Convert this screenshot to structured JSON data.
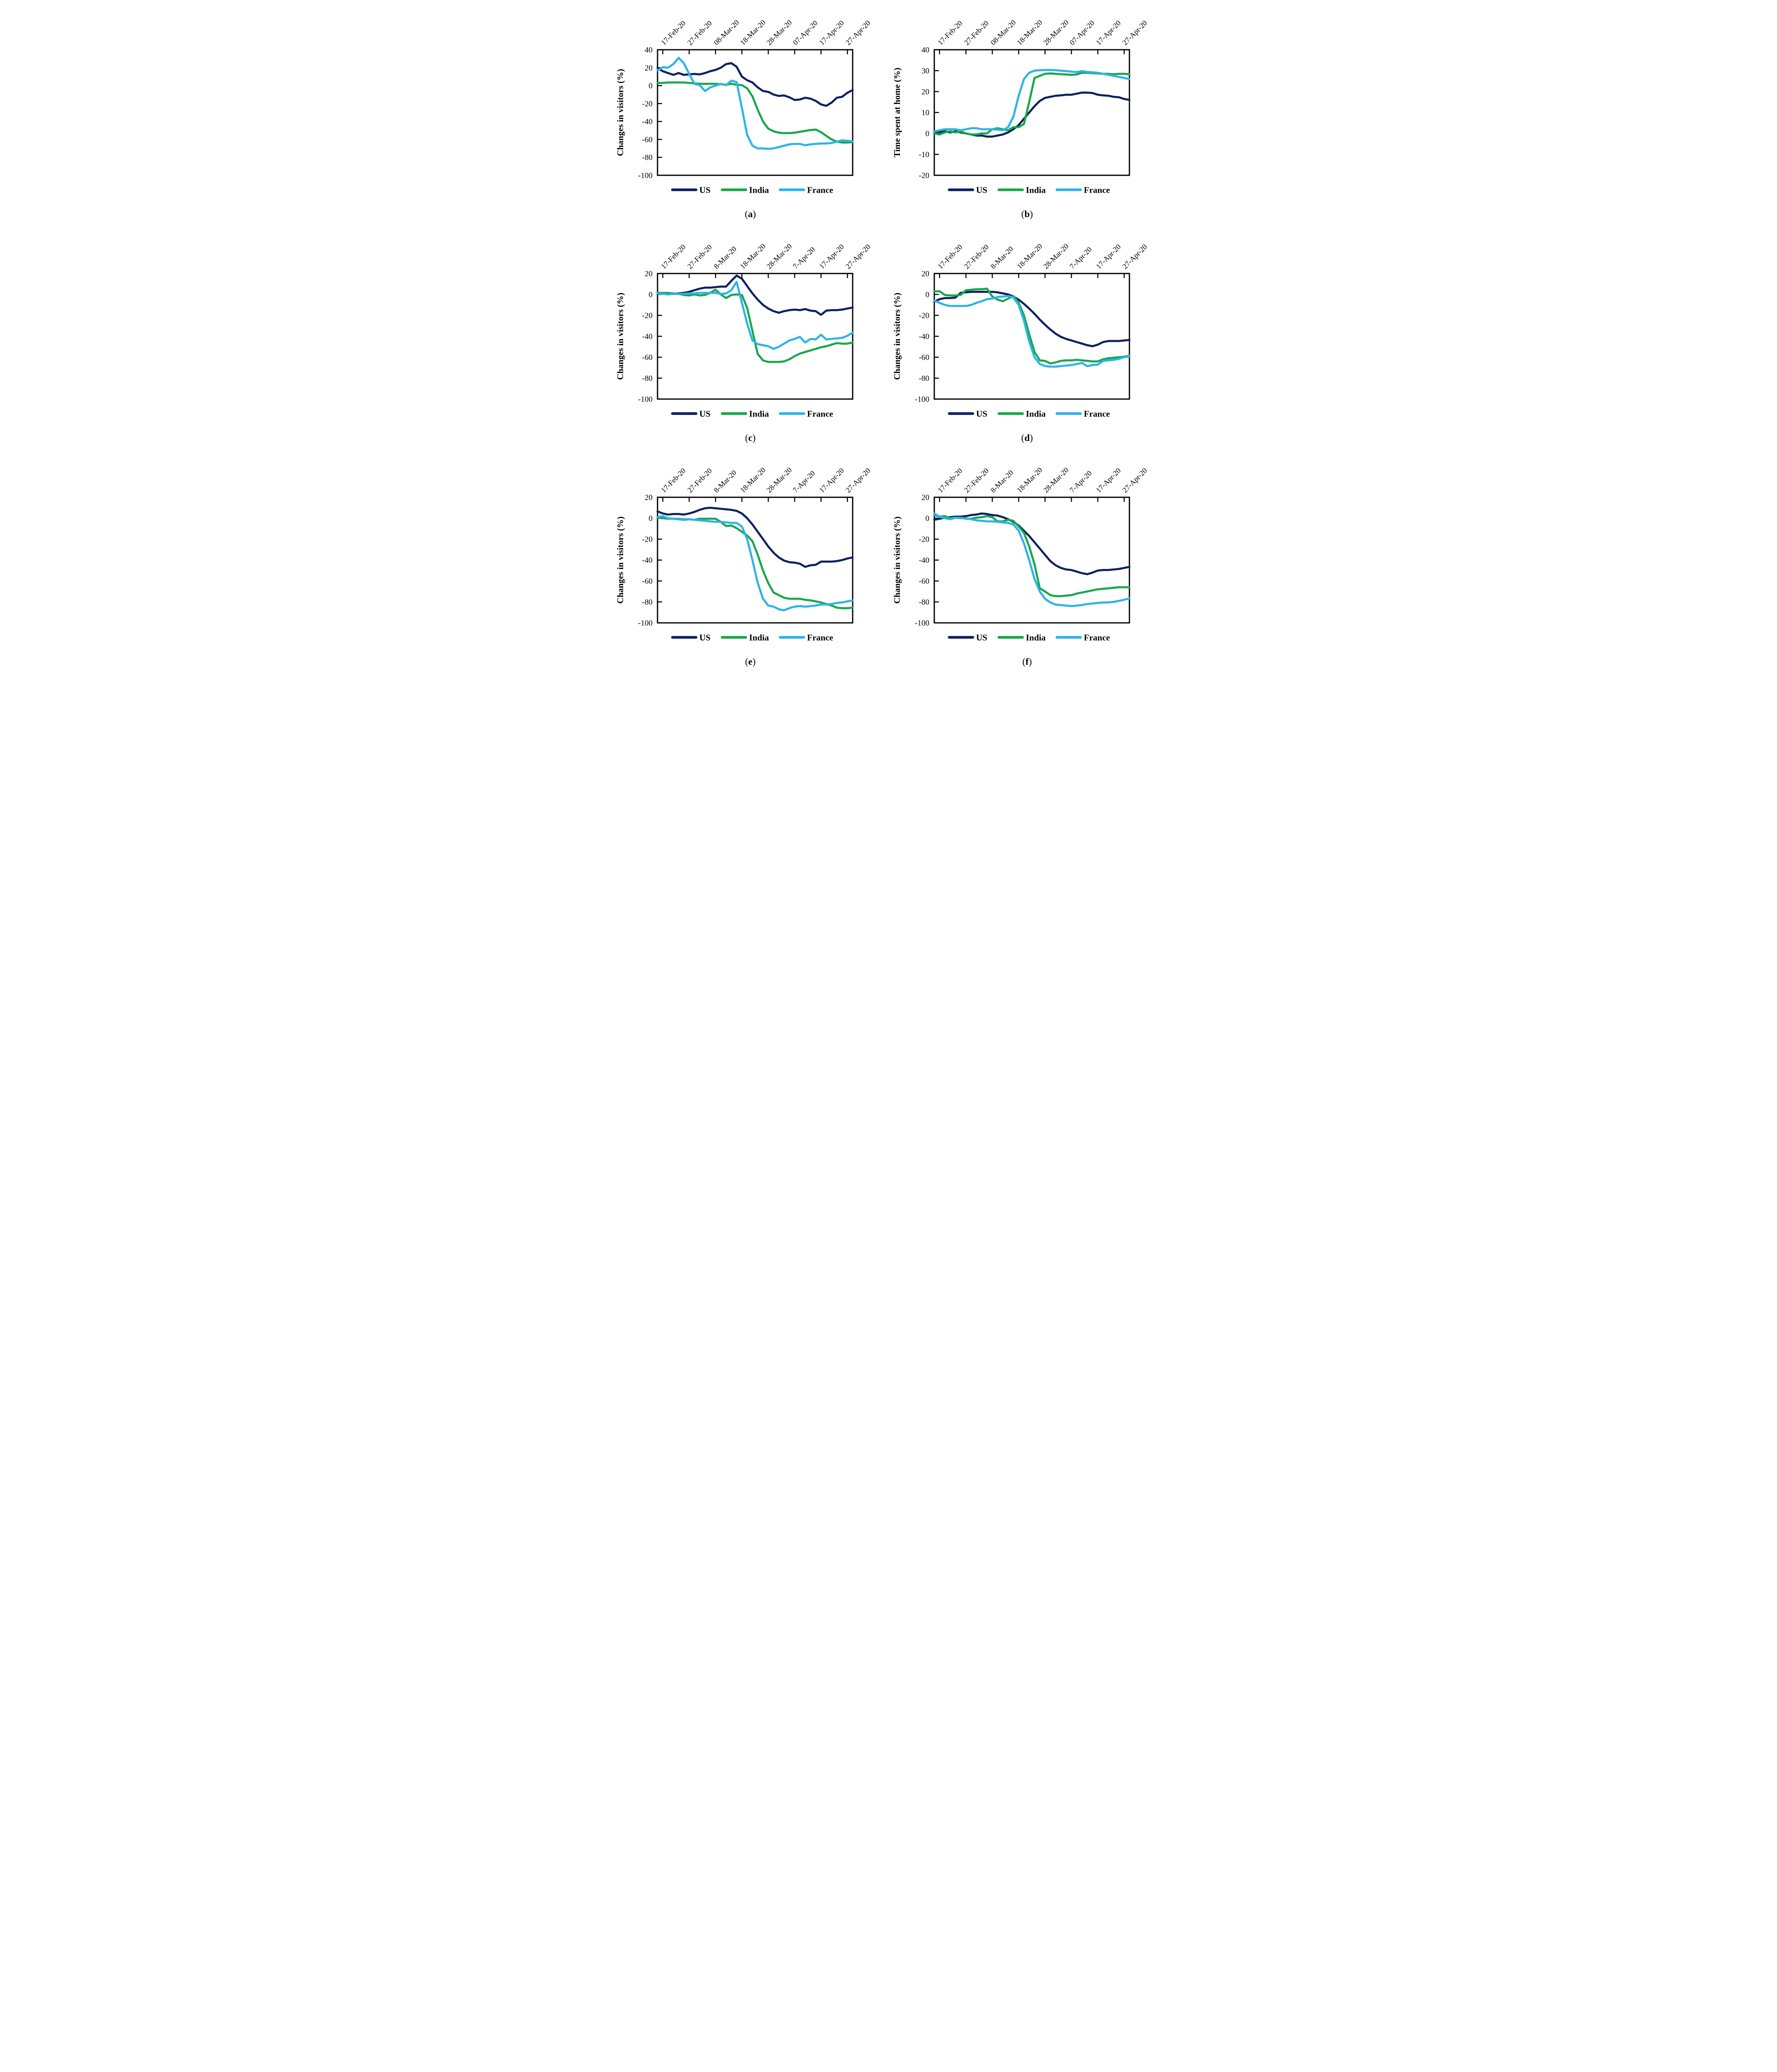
{
  "page": {
    "background": "#ffffff"
  },
  "legend": {
    "items": [
      {
        "label": "US",
        "color": "#0d2161"
      },
      {
        "label": "India",
        "color": "#17a84b"
      },
      {
        "label": "France",
        "color": "#2db3e8"
      }
    ]
  },
  "x_axis": {
    "days": [
      0,
      2,
      4,
      6,
      8,
      10,
      12,
      14,
      16,
      18,
      20,
      22,
      24,
      26,
      28,
      30,
      32,
      34,
      36,
      38,
      40,
      42,
      44,
      46,
      48,
      50,
      52,
      54,
      56,
      58,
      60,
      62,
      64,
      66,
      68,
      70,
      72,
      74
    ],
    "tick_days": [
      2,
      12,
      22,
      32,
      42,
      52,
      62,
      72
    ]
  },
  "chart_data": [
    {
      "id": "a",
      "type": "line",
      "caption": {
        "prefix": "(",
        "letter": "a",
        "suffix": ")"
      },
      "ylabel": "Changes in visitors (%)",
      "ylim": [
        -100,
        40
      ],
      "yticks": [
        40,
        20,
        0,
        -20,
        -40,
        -60,
        -80,
        -100
      ],
      "xtick_labels": [
        "17-Feb-20",
        "27-Feb-20",
        "08-Mar-20",
        "18-Mar-20",
        "28-Mar-20",
        "07-Apr-20",
        "17-Apr-20",
        "27-Apr-20"
      ],
      "legend_position": "bottom",
      "series": [
        {
          "name": "US",
          "color": "#0d2161",
          "values": [
            20,
            16,
            14,
            12,
            14,
            12,
            12.5,
            13,
            12.5,
            14,
            16,
            17.5,
            20,
            24,
            25,
            21,
            10,
            6,
            3.5,
            -2,
            -6,
            -7,
            -10,
            -11.5,
            -11,
            -13,
            -16,
            -15.5,
            -13.5,
            -14.5,
            -17,
            -21,
            -22.5,
            -19,
            -13.5,
            -12.5,
            -8,
            -5
          ]
        },
        {
          "name": "India",
          "color": "#17a84b",
          "values": [
            3,
            3,
            3.5,
            3.5,
            3.5,
            3.5,
            3,
            2.5,
            2,
            2,
            2,
            2,
            1.5,
            1,
            2,
            1,
            0.5,
            -3,
            -12,
            -27,
            -40,
            -48,
            -51,
            -52.5,
            -53,
            -53,
            -52.5,
            -51.5,
            -50.5,
            -49.5,
            -49,
            -52,
            -56,
            -60,
            -62.5,
            -63.5,
            -63.5,
            -63
          ]
        },
        {
          "name": "France",
          "color": "#2db3e8",
          "values": [
            17,
            20.5,
            20,
            24,
            31,
            25,
            13,
            2,
            0.5,
            -6,
            -2,
            0,
            2,
            0.5,
            5.5,
            4,
            -25,
            -55,
            -67,
            -70,
            -70,
            -70.5,
            -70,
            -68.5,
            -67,
            -65.5,
            -65,
            -65,
            -66.5,
            -65.5,
            -65,
            -64.5,
            -64.5,
            -64,
            -62.5,
            -61,
            -61.5,
            -62
          ]
        }
      ]
    },
    {
      "id": "b",
      "type": "line",
      "caption": {
        "prefix": "(",
        "letter": "b",
        "suffix": ")"
      },
      "ylabel": "Time spent at home (%)",
      "ylim": [
        -20,
        40
      ],
      "yticks": [
        40,
        30,
        20,
        10,
        0,
        -10,
        -20
      ],
      "xtick_labels": [
        "17-Feb-20",
        "27-Feb-20",
        "08-Mar-20",
        "18-Mar-20",
        "28-Mar-20",
        "07-Apr-20",
        "17-Apr-20",
        "27-Apr-20"
      ],
      "legend_position": "bottom",
      "series": [
        {
          "name": "US",
          "color": "#0d2161",
          "values": [
            0.5,
            0.5,
            1,
            0.5,
            1,
            0.5,
            0,
            -0.5,
            -1,
            -1,
            -1.5,
            -1.5,
            -1,
            -0.5,
            0.5,
            2,
            4,
            7,
            10,
            13,
            15.5,
            17,
            17.5,
            18,
            18.2,
            18.5,
            18.5,
            19,
            19.5,
            19.5,
            19.3,
            18.5,
            18.2,
            18,
            17.5,
            17.3,
            16.5,
            16
          ]
        },
        {
          "name": "India",
          "color": "#17a84b",
          "values": [
            0,
            -0.5,
            0.5,
            1,
            0.5,
            1,
            0,
            -0.5,
            -0.5,
            0,
            0,
            2,
            2.5,
            2,
            1.5,
            3,
            3,
            4.5,
            15,
            26.5,
            27.5,
            28.5,
            28.7,
            28.5,
            28.3,
            28.2,
            28,
            28.2,
            29,
            29,
            28.8,
            28.7,
            28.5,
            28.5,
            28.3,
            28.5,
            28.5,
            28.3
          ]
        },
        {
          "name": "France",
          "color": "#2db3e8",
          "values": [
            1,
            1.5,
            2,
            2,
            2,
            1.5,
            2,
            2.5,
            2.5,
            2,
            2,
            2,
            1.8,
            1.5,
            3,
            8,
            18,
            26,
            29,
            30,
            30.2,
            30.3,
            30.3,
            30.2,
            30,
            29.8,
            29.5,
            29.3,
            29.8,
            29.4,
            29.2,
            29,
            28.5,
            28,
            27.5,
            27,
            26.5,
            26
          ]
        }
      ]
    },
    {
      "id": "c",
      "type": "line",
      "caption": {
        "prefix": "(",
        "letter": "c",
        "suffix": ")"
      },
      "ylabel": "Changes in visitors (%)",
      "ylim": [
        -100,
        20
      ],
      "yticks": [
        20,
        0,
        -20,
        -40,
        -60,
        -80,
        -100
      ],
      "xtick_labels": [
        "17-Feb-20",
        "27-Feb-20",
        "8-Mar-20",
        "18-Mar-20",
        "28-Mar-20",
        "7-Apr-20",
        "17-Apr-20",
        "27-Apr-20"
      ],
      "legend_position": "bottom",
      "series": [
        {
          "name": "US",
          "color": "#0d2161",
          "values": [
            0.5,
            1,
            1,
            0.5,
            1,
            1.5,
            2.5,
            4,
            5.5,
            6.5,
            6.5,
            7,
            7.5,
            7.5,
            13,
            18,
            15,
            8,
            1,
            -5,
            -10,
            -13.5,
            -16,
            -17.5,
            -16,
            -15,
            -14.5,
            -15,
            -14,
            -15.5,
            -16,
            -19.5,
            -15.5,
            -15,
            -15,
            -14.5,
            -13.5,
            -12.5
          ]
        },
        {
          "name": "India",
          "color": "#17a84b",
          "values": [
            1.5,
            1.5,
            1.5,
            1,
            0.5,
            -0.5,
            -1,
            0,
            -1,
            -0.5,
            1.5,
            4.5,
            0,
            -3.5,
            -0.5,
            0,
            -0.5,
            -13,
            -35,
            -57,
            -63,
            -64.5,
            -64.5,
            -64.5,
            -64,
            -62,
            -59,
            -56.5,
            -55,
            -53.5,
            -52,
            -50.5,
            -49.5,
            -48,
            -46.5,
            -47,
            -47,
            -46
          ]
        },
        {
          "name": "France",
          "color": "#2db3e8",
          "values": [
            1,
            0.5,
            0,
            0.5,
            0.5,
            0.5,
            1,
            1,
            1.5,
            1.5,
            1.5,
            1.5,
            0.5,
            1,
            4,
            12,
            -8,
            -28,
            -44,
            -47.5,
            -48.5,
            -49.5,
            -52,
            -50,
            -47,
            -44,
            -42.5,
            -40.5,
            -46,
            -42.5,
            -43,
            -38.5,
            -43,
            -42.5,
            -42,
            -41.5,
            -39.5,
            -36.5
          ]
        }
      ]
    },
    {
      "id": "d",
      "type": "line",
      "caption": {
        "prefix": "(",
        "letter": "d",
        "suffix": ")"
      },
      "ylabel": "Changes in visitors (%)",
      "ylim": [
        -100,
        20
      ],
      "yticks": [
        20,
        0,
        -20,
        -40,
        -60,
        -80,
        -100
      ],
      "xtick_labels": [
        "17-Feb-20",
        "27-Feb-20",
        "8-Mar-20",
        "18-Mar-20",
        "28-Mar-20",
        "7-Apr-20",
        "17-Apr-20",
        "27-Apr-20"
      ],
      "legend_position": "bottom",
      "series": [
        {
          "name": "US",
          "color": "#0d2161",
          "values": [
            -7,
            -4.5,
            -3.5,
            -3.5,
            -3,
            1.5,
            2,
            2.5,
            2.5,
            2.5,
            2.5,
            2.5,
            2,
            1,
            0,
            -2,
            -5,
            -9,
            -13.5,
            -18.5,
            -24,
            -29,
            -33.5,
            -37.5,
            -40.5,
            -42.5,
            -44,
            -45.5,
            -47,
            -48.5,
            -49.5,
            -48,
            -45.5,
            -44.5,
            -44.5,
            -44.5,
            -44,
            -43.5
          ]
        },
        {
          "name": "India",
          "color": "#17a84b",
          "values": [
            3,
            3,
            -0.5,
            -1,
            -1,
            -0.5,
            4,
            4.5,
            5,
            5,
            5.5,
            -2,
            -5,
            -6.5,
            -4,
            -1.5,
            -8,
            -20,
            -38,
            -55,
            -63,
            -63.5,
            -66,
            -65,
            -63.5,
            -63,
            -63,
            -62.5,
            -63,
            -63.5,
            -64,
            -64,
            -62,
            -61,
            -60.5,
            -60,
            -59.5,
            -58.5
          ]
        },
        {
          "name": "France",
          "color": "#2db3e8",
          "values": [
            -6,
            -8,
            -10,
            -11,
            -11,
            -11,
            -11,
            -10,
            -8,
            -6.5,
            -4.5,
            -4,
            -2.5,
            -2,
            -1.5,
            -3,
            -10,
            -25,
            -45,
            -60,
            -66.5,
            -68.5,
            -69,
            -69,
            -68.5,
            -68,
            -67.5,
            -66.5,
            -65.5,
            -68.5,
            -67.5,
            -67,
            -63.5,
            -63,
            -62.5,
            -61.5,
            -60,
            -59
          ]
        }
      ]
    },
    {
      "id": "e",
      "type": "line",
      "caption": {
        "prefix": "(",
        "letter": "e",
        "suffix": ")"
      },
      "ylabel": "Changes in visitors (%)",
      "ylim": [
        -100,
        20
      ],
      "yticks": [
        20,
        0,
        -20,
        -40,
        -60,
        -80,
        -100
      ],
      "xtick_labels": [
        "17-Feb-20",
        "27-Feb-20",
        "8-Mar-20",
        "18-Mar-20",
        "28-Mar-20",
        "7-Apr-20",
        "17-Apr-20",
        "27-Apr-20"
      ],
      "legend_position": "bottom",
      "series": [
        {
          "name": "US",
          "color": "#0d2161",
          "values": [
            6.5,
            4.5,
            3.5,
            4,
            4,
            3.5,
            4.5,
            6,
            8,
            9.5,
            10,
            9.5,
            9,
            8.5,
            8,
            7,
            4.5,
            0,
            -6,
            -13,
            -20,
            -27,
            -33,
            -37.5,
            -40.5,
            -42,
            -42.5,
            -43.5,
            -46.5,
            -45,
            -44.5,
            -41.5,
            -41.5,
            -41.5,
            -41,
            -40,
            -38.5,
            -37.5
          ]
        },
        {
          "name": "India",
          "color": "#17a84b",
          "values": [
            0.5,
            0,
            -0.5,
            -0.5,
            -1,
            -1.5,
            -1,
            -1.5,
            -0.5,
            -0.5,
            -0.5,
            -0.5,
            -3.5,
            -7.5,
            -7,
            -9.5,
            -13,
            -16.5,
            -22,
            -35,
            -50,
            -62,
            -71,
            -73.5,
            -76,
            -77,
            -77,
            -77,
            -78,
            -78.5,
            -79.5,
            -80.5,
            -82,
            -83.5,
            -85.5,
            -86,
            -86,
            -85.5
          ]
        },
        {
          "name": "France",
          "color": "#2db3e8",
          "values": [
            1,
            2,
            0,
            -0.5,
            -0.5,
            -1,
            -1,
            -1.5,
            -2,
            -2.5,
            -3,
            -3.5,
            -3.5,
            -4,
            -4.5,
            -4.5,
            -8,
            -20,
            -40,
            -62,
            -77,
            -83.5,
            -84.5,
            -87,
            -88,
            -86,
            -84.5,
            -84,
            -84.5,
            -84,
            -83.5,
            -82.5,
            -82.5,
            -82,
            -81,
            -80.5,
            -79.5,
            -78.5
          ]
        }
      ]
    },
    {
      "id": "f",
      "type": "line",
      "caption": {
        "prefix": "(",
        "letter": "f",
        "suffix": ")"
      },
      "ylabel": "Changes in visitors (%)",
      "ylim": [
        -100,
        20
      ],
      "yticks": [
        20,
        0,
        -20,
        -40,
        -60,
        -80,
        -100
      ],
      "xtick_labels": [
        "17-Feb-20",
        "27-Feb-20",
        "8-Mar-20",
        "18-Mar-20",
        "28-Mar-20",
        "7-Apr-20",
        "17-Apr-20",
        "27-Apr-20"
      ],
      "legend_position": "bottom",
      "series": [
        {
          "name": "US",
          "color": "#0d2161",
          "values": [
            -1.5,
            -0.5,
            0.5,
            1,
            1.5,
            1.5,
            2,
            3,
            3.5,
            4.5,
            4,
            3,
            2.5,
            1,
            -1,
            -3.5,
            -7,
            -12,
            -17,
            -23,
            -29,
            -35,
            -41,
            -45,
            -47.5,
            -49,
            -49.5,
            -51,
            -52.5,
            -53.5,
            -52,
            -50,
            -49.5,
            -49.5,
            -49,
            -48.5,
            -47.5,
            -46.5
          ]
        },
        {
          "name": "India",
          "color": "#17a84b",
          "values": [
            3,
            1.5,
            2,
            0,
            0.5,
            0.5,
            -0.5,
            -0.5,
            0.5,
            1,
            2,
            1,
            -3,
            -3,
            -1.5,
            -2.5,
            -8,
            -14,
            -27,
            -44,
            -67,
            -70,
            -73.5,
            -74.5,
            -74.5,
            -74,
            -73.5,
            -72,
            -71,
            -70,
            -69,
            -68,
            -67.5,
            -67,
            -66.5,
            -66,
            -66,
            -66
          ]
        },
        {
          "name": "France",
          "color": "#2db3e8",
          "values": [
            4.5,
            1.5,
            0,
            -1,
            0.5,
            0,
            0,
            -1,
            -2,
            -2.5,
            -3,
            -3,
            -3.5,
            -4,
            -4.5,
            -6,
            -12,
            -24,
            -40,
            -58,
            -70,
            -77,
            -80.5,
            -82.5,
            -83,
            -83.5,
            -84,
            -83.5,
            -83,
            -82,
            -81.5,
            -81,
            -80.5,
            -80.5,
            -80,
            -79,
            -78,
            -76.5
          ]
        }
      ]
    }
  ]
}
